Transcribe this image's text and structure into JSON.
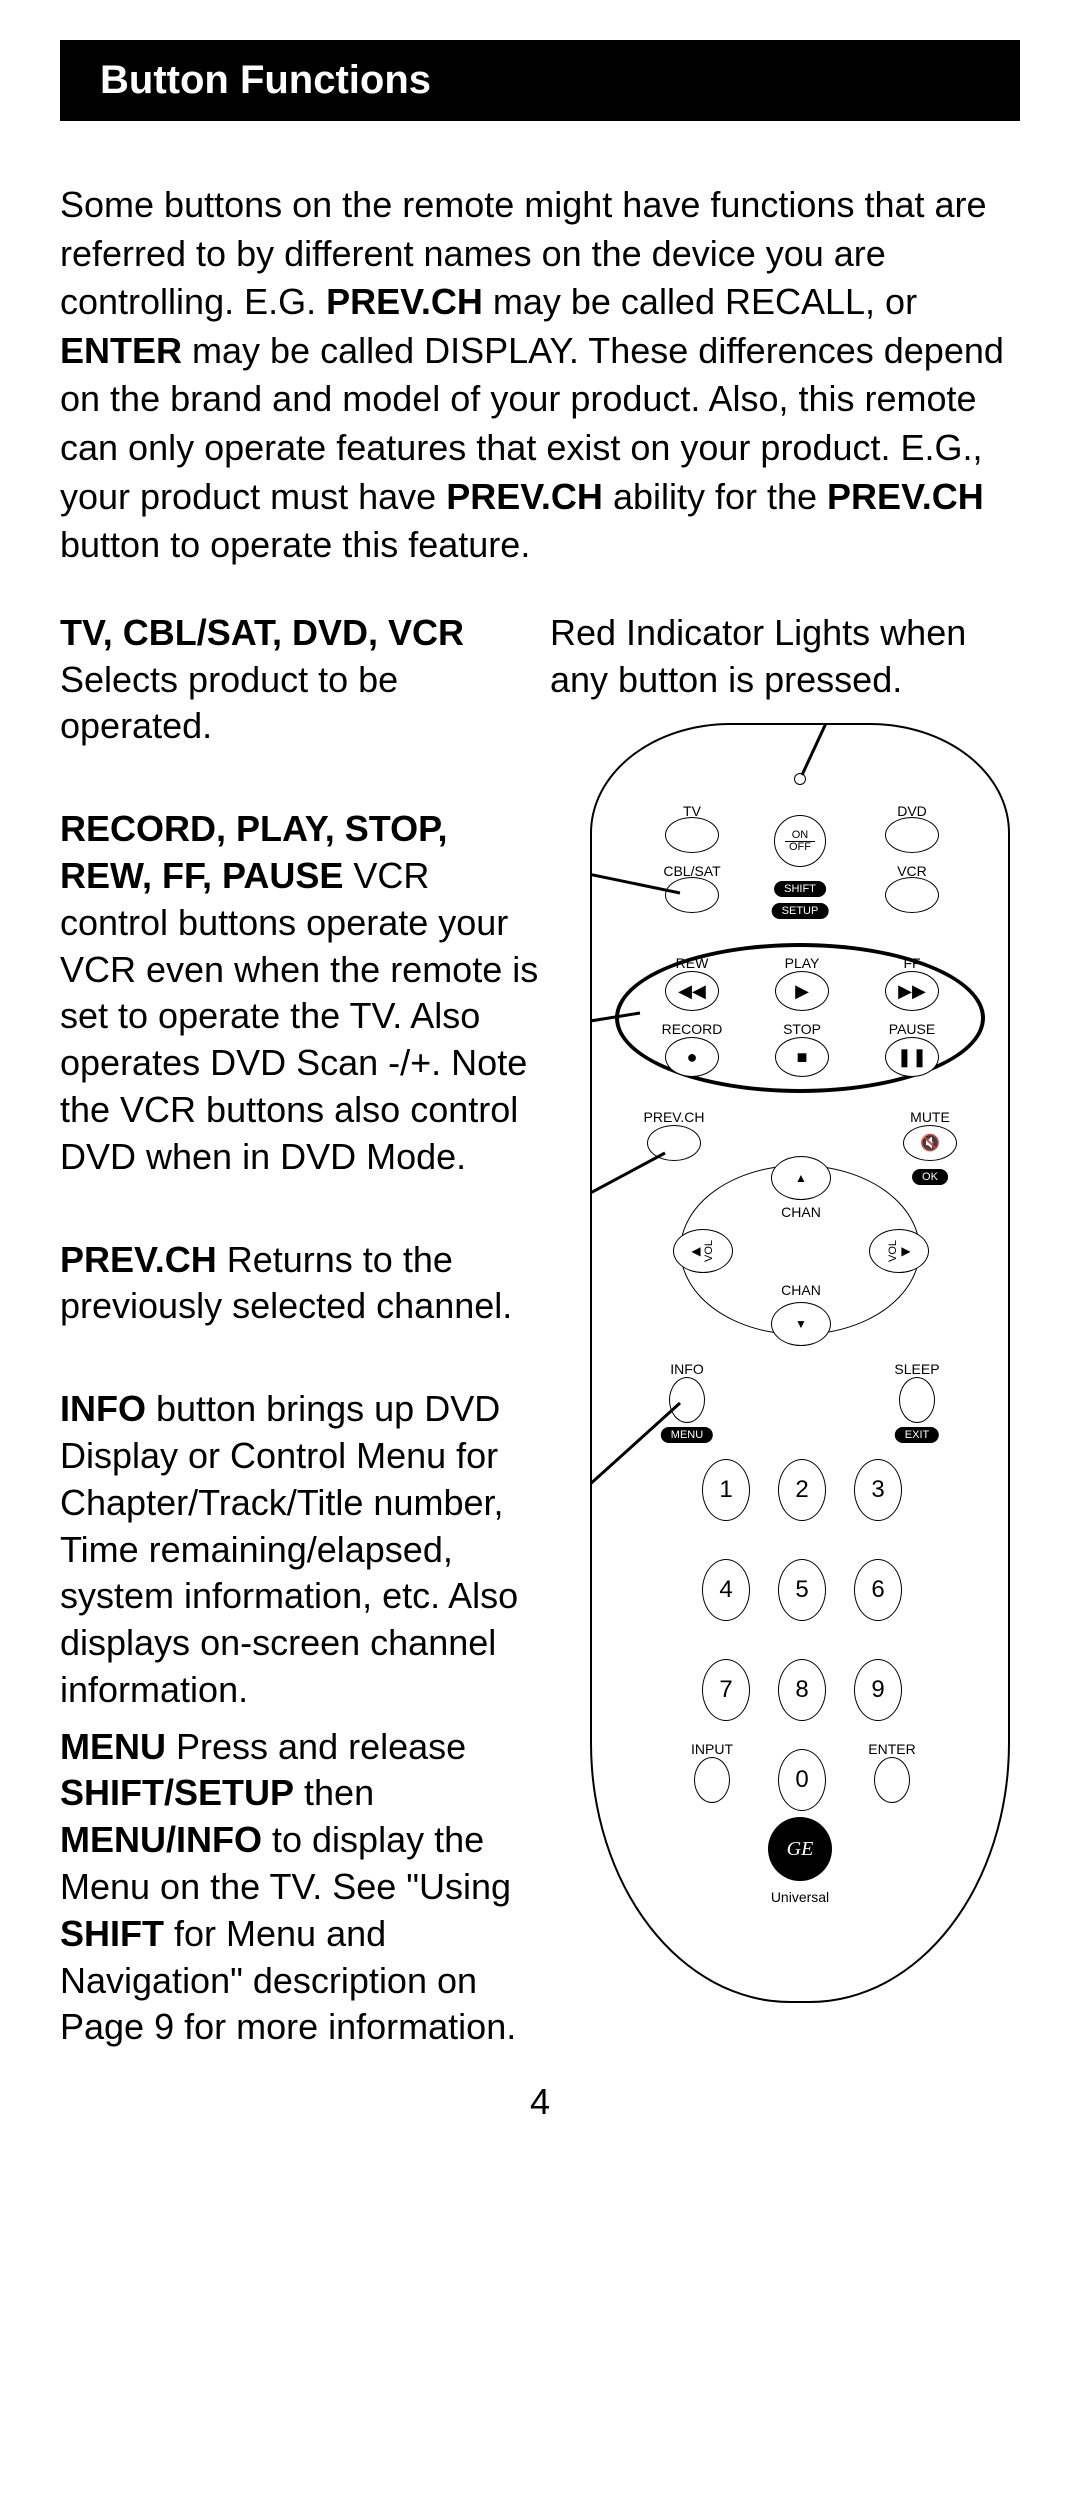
{
  "title": "Button Functions",
  "intro_parts": [
    {
      "t": "Some buttons on the remote might have functions that are referred to by different names on the device you are controlling. E.G. ",
      "b": false
    },
    {
      "t": "PREV.CH",
      "b": true
    },
    {
      "t": " may be called RECALL, or ",
      "b": false
    },
    {
      "t": "ENTER",
      "b": true
    },
    {
      "t": " may be called DISPLAY. These differences depend on the brand and model of your product. Also, this remote can only operate features that exist on your product. E.G., your product must have ",
      "b": false
    },
    {
      "t": "PREV.CH",
      "b": true
    },
    {
      "t": " ability for the ",
      "b": false
    },
    {
      "t": "PREV.CH",
      "b": true
    },
    {
      "t": " button to operate this feature.",
      "b": false
    }
  ],
  "red_indicator": "Red Indicator Lights when any button is pressed.",
  "callout_device": {
    "head": "TV, CBL/SAT, DVD, VCR",
    "body": " Selects product to be operated."
  },
  "callout_transport": {
    "head": "RECORD, PLAY, STOP, REW, FF, PAUSE",
    "body": " VCR control buttons operate your VCR even when the remote is set to operate the TV. Also operates DVD Scan -/+. Note the VCR buttons also control DVD when in DVD Mode."
  },
  "callout_prevch": {
    "head": "PREV.CH",
    "body": "  Returns to the previously selected channel."
  },
  "callout_info_parts": [
    {
      "t": "INFO",
      "b": true
    },
    {
      "t": " button brings up DVD Display or Control Menu for Chapter/Track/Title number, Time remaining/elapsed, system information, etc. Also displays on-screen channel information.",
      "b": false
    }
  ],
  "callout_menu_parts": [
    {
      "t": "MENU",
      "b": true
    },
    {
      "t": " Press and release ",
      "b": false
    },
    {
      "t": "SHIFT/SETUP",
      "b": true
    },
    {
      "t": " then ",
      "b": false
    },
    {
      "t": "MENU/INFO",
      "b": true
    },
    {
      "t": " to display the Menu on the TV. See \"Using ",
      "b": false
    },
    {
      "t": "SHIFT",
      "b": true
    },
    {
      "t": " for Menu and Navigation\" description on Page 9 for more information.",
      "b": false
    }
  ],
  "remote": {
    "device_labels": {
      "tv": "TV",
      "dvd": "DVD",
      "cblsat": "CBL/SAT",
      "vcr": "VCR"
    },
    "onoff_top": "ON",
    "onoff_bot": "OFF",
    "shift": "SHIFT",
    "setup": "SETUP",
    "transport": {
      "rew": "REW",
      "play": "PLAY",
      "ff": "FF",
      "record": "RECORD",
      "stop": "STOP",
      "pause": "PAUSE"
    },
    "prevch": "PREV.CH",
    "mute": "MUTE",
    "ok": "OK",
    "chan": "CHAN",
    "vol": "VOL",
    "info": "INFO",
    "sleep": "SLEEP",
    "menu": "MENU",
    "exit": "EXIT",
    "input": "INPUT",
    "enter": "ENTER",
    "numbers": [
      "1",
      "2",
      "3",
      "4",
      "5",
      "6",
      "7",
      "8",
      "9",
      "0"
    ],
    "brand": "Universal",
    "logo": "GE"
  },
  "page_number": "4",
  "colors": {
    "bg": "#ffffff",
    "fg": "#000000",
    "title_bg": "#000000",
    "title_fg": "#ffffff"
  }
}
